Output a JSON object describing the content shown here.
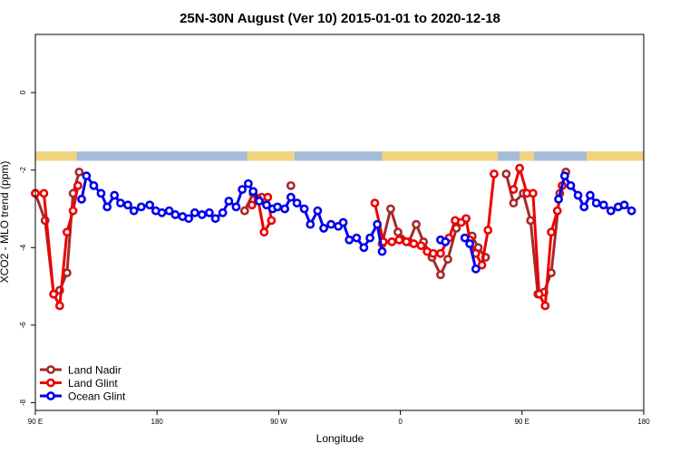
{
  "chart_data": {
    "type": "line",
    "title": "25N-30N August (Ver 10)   2015-01-01 to 2020-12-18",
    "xlabel": "Longitude",
    "ylabel": "XCO2 - MLO trend (ppm)",
    "xlim": [
      0,
      500
    ],
    "ylim": [
      -8.2,
      1.5
    ],
    "x_ticks": [
      {
        "value": 0,
        "label": "90 E"
      },
      {
        "value": 100,
        "label": "180"
      },
      {
        "value": 200,
        "label": "90 W"
      },
      {
        "value": 300,
        "label": "0"
      },
      {
        "value": 400,
        "label": "90 E"
      },
      {
        "value": 500,
        "label": "180"
      }
    ],
    "y_ticks": [
      {
        "value": 0,
        "label": "0"
      },
      {
        "value": -2,
        "label": "-2"
      },
      {
        "value": -4,
        "label": "-4"
      },
      {
        "value": -6,
        "label": "-6"
      },
      {
        "value": -8,
        "label": "-8"
      }
    ],
    "surface_strip": {
      "y_range": [
        -1.52,
        -1.76
      ],
      "ocean_color": "#a4bcd9",
      "land_color": "#f2d37f",
      "land_ranges": [
        [
          0,
          34
        ],
        [
          174,
          213
        ],
        [
          285,
          380
        ],
        [
          398,
          410
        ],
        [
          453,
          500
        ]
      ]
    },
    "legend_position": "bottom-left",
    "grid": false,
    "series": [
      {
        "name": "Land Nadir",
        "color": "#a52a2a",
        "segments": [
          [
            [
              0,
              -2.6
            ],
            [
              8,
              -3.3
            ],
            [
              15,
              -5.2
            ],
            [
              20,
              -5.1
            ],
            [
              26,
              -4.65
            ],
            [
              31,
              -2.6
            ],
            [
              36,
              -2.05
            ]
          ],
          [
            [
              172,
              -3.05
            ],
            [
              179,
              -2.6
            ],
            [
              186,
              -2.7
            ]
          ],
          [
            [
              210,
              -2.4
            ]
          ],
          [
            [
              285,
              -3.9
            ],
            [
              292,
              -3.0
            ],
            [
              298,
              -3.6
            ],
            [
              307,
              -3.85
            ],
            [
              313,
              -3.4
            ],
            [
              319,
              -3.85
            ],
            [
              326,
              -4.25
            ],
            [
              333,
              -4.7
            ],
            [
              339,
              -4.3
            ],
            [
              346,
              -3.5
            ]
          ],
          [
            [
              359,
              -3.7
            ],
            [
              364,
              -4.0
            ],
            [
              370,
              -4.25
            ]
          ],
          [
            [
              387,
              -2.1
            ],
            [
              393,
              -2.85
            ],
            [
              401,
              -2.6
            ],
            [
              407,
              -3.3
            ],
            [
              413,
              -5.2
            ],
            [
              418,
              -5.15
            ],
            [
              424,
              -4.65
            ],
            [
              431,
              -2.6
            ],
            [
              436,
              -2.05
            ]
          ]
        ]
      },
      {
        "name": "Land Glint",
        "color": "#ee0000",
        "segments": [
          [
            [
              0,
              -2.6
            ],
            [
              7,
              -2.6
            ],
            [
              15,
              -5.2
            ],
            [
              20,
              -5.5
            ],
            [
              26,
              -3.6
            ],
            [
              31,
              -3.05
            ],
            [
              35,
              -2.4
            ]
          ],
          [
            [
              178,
              -2.9
            ],
            [
              183,
              -2.75
            ],
            [
              188,
              -3.6
            ],
            [
              194,
              -3.3
            ],
            [
              191,
              -2.7
            ]
          ],
          [
            [
              279,
              -2.85
            ],
            [
              286,
              -3.85
            ],
            [
              293,
              -3.85
            ],
            [
              299,
              -3.8
            ],
            [
              305,
              -3.85
            ],
            [
              311,
              -3.9
            ],
            [
              317,
              -3.95
            ],
            [
              322,
              -4.1
            ],
            [
              327,
              -4.15
            ],
            [
              333,
              -4.15
            ],
            [
              340,
              -3.75
            ],
            [
              345,
              -3.3
            ],
            [
              350,
              -3.35
            ],
            [
              354,
              -3.25
            ],
            [
              357,
              -3.8
            ],
            [
              362,
              -4.15
            ],
            [
              367,
              -4.45
            ],
            [
              372,
              -3.55
            ],
            [
              377,
              -2.1
            ]
          ],
          [
            [
              393,
              -2.5
            ],
            [
              398,
              -1.95
            ],
            [
              404,
              -2.6
            ],
            [
              409,
              -2.6
            ],
            [
              414,
              -5.2
            ],
            [
              419,
              -5.5
            ],
            [
              424,
              -3.6
            ],
            [
              429,
              -3.05
            ],
            [
              433,
              -2.4
            ]
          ]
        ]
      },
      {
        "name": "Ocean Glint",
        "color": "#0000ee",
        "segments": [
          [
            [
              38,
              -2.75
            ],
            [
              42,
              -2.15
            ],
            [
              48,
              -2.4
            ],
            [
              54,
              -2.6
            ],
            [
              59,
              -2.95
            ],
            [
              65,
              -2.65
            ],
            [
              70,
              -2.85
            ],
            [
              76,
              -2.9
            ],
            [
              81,
              -3.05
            ],
            [
              87,
              -2.95
            ],
            [
              94,
              -2.9
            ],
            [
              99,
              -3.05
            ],
            [
              104,
              -3.1
            ],
            [
              110,
              -3.05
            ],
            [
              115,
              -3.15
            ],
            [
              121,
              -3.2
            ],
            [
              126,
              -3.25
            ],
            [
              131,
              -3.1
            ],
            [
              137,
              -3.15
            ],
            [
              143,
              -3.1
            ],
            [
              148,
              -3.25
            ],
            [
              154,
              -3.1
            ],
            [
              159,
              -2.8
            ],
            [
              165,
              -2.95
            ],
            [
              170,
              -2.5
            ],
            [
              175,
              -2.35
            ],
            [
              179,
              -2.55
            ],
            [
              184,
              -2.8
            ],
            [
              190,
              -2.9
            ],
            [
              195,
              -3.0
            ],
            [
              199,
              -2.95
            ],
            [
              205,
              -3.0
            ],
            [
              210,
              -2.7
            ],
            [
              215,
              -2.85
            ],
            [
              221,
              -3.0
            ],
            [
              226,
              -3.4
            ],
            [
              232,
              -3.05
            ],
            [
              237,
              -3.5
            ],
            [
              243,
              -3.4
            ],
            [
              249,
              -3.45
            ],
            [
              253,
              -3.35
            ],
            [
              258,
              -3.8
            ],
            [
              264,
              -3.75
            ],
            [
              270,
              -4.0
            ],
            [
              275,
              -3.75
            ],
            [
              281,
              -3.4
            ],
            [
              285,
              -4.1
            ]
          ],
          [
            [
              333,
              -3.8
            ],
            [
              337,
              -3.85
            ]
          ],
          [
            [
              353,
              -3.75
            ],
            [
              357,
              -3.9
            ],
            [
              362,
              -4.55
            ]
          ],
          [
            [
              430,
              -2.75
            ],
            [
              435,
              -2.15
            ],
            [
              440,
              -2.4
            ],
            [
              446,
              -2.65
            ],
            [
              451,
              -2.95
            ],
            [
              456,
              -2.65
            ],
            [
              461,
              -2.85
            ],
            [
              467,
              -2.9
            ],
            [
              473,
              -3.05
            ],
            [
              479,
              -2.95
            ],
            [
              484,
              -2.9
            ],
            [
              490,
              -3.05
            ]
          ]
        ]
      }
    ]
  }
}
